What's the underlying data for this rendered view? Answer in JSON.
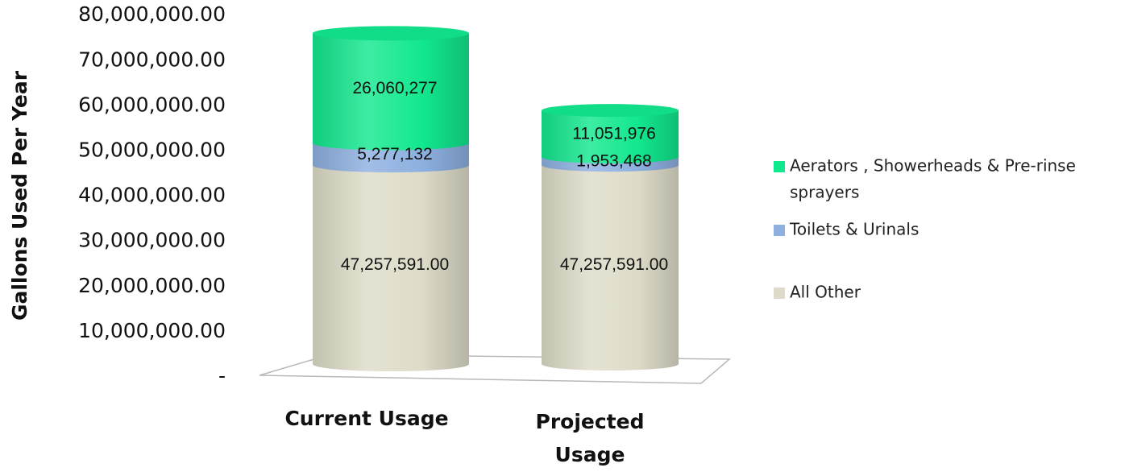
{
  "chart_data": {
    "type": "bar",
    "stacked": true,
    "style": "3d-cylinder",
    "title": "",
    "xlabel": "",
    "ylabel": "Gallons Used  Per Year",
    "ylim": [
      0,
      80000000
    ],
    "y_ticks": [
      {
        "value": 0,
        "label": "-"
      },
      {
        "value": 10000000,
        "label": "10,000,000.00"
      },
      {
        "value": 20000000,
        "label": "20,000,000.00"
      },
      {
        "value": 30000000,
        "label": "30,000,000.00"
      },
      {
        "value": 40000000,
        "label": "40,000,000.00"
      },
      {
        "value": 50000000,
        "label": "50,000,000.00"
      },
      {
        "value": 60000000,
        "label": "60,000,000.00"
      },
      {
        "value": 70000000,
        "label": "70,000,000.00"
      },
      {
        "value": 80000000,
        "label": "80,000,000.00"
      }
    ],
    "categories": [
      {
        "lines": [
          "Current Usage"
        ]
      },
      {
        "lines": [
          "Projected",
          "Usage"
        ]
      }
    ],
    "grid": false,
    "legend_position": "right",
    "series": [
      {
        "name": "All Other",
        "color": "#dedcc8",
        "values": [
          47257591,
          47257591
        ],
        "data_labels": [
          "47,257,591.00",
          "47,257,591.00"
        ]
      },
      {
        "name": "Toilets & Urinals",
        "color": "#8db0e0",
        "values": [
          5277132,
          1953468
        ],
        "data_labels": [
          "5,277,132",
          "1,953,468"
        ]
      },
      {
        "name": "Aerators , Showerheads & Pre-rinse sprayers",
        "color": "#12e88e",
        "values": [
          26060277,
          11051976
        ],
        "data_labels": [
          "26,060,277",
          "11,051,976"
        ]
      }
    ],
    "legend": [
      {
        "lines": [
          "Aerators , Showerheads & Pre-rinse",
          "sprayers"
        ],
        "color": "#12e88e"
      },
      {
        "lines": [
          "Toilets & Urinals"
        ],
        "color": "#8db0e0"
      },
      {
        "lines": [
          "All Other"
        ],
        "color": "#dedcc8"
      }
    ]
  }
}
